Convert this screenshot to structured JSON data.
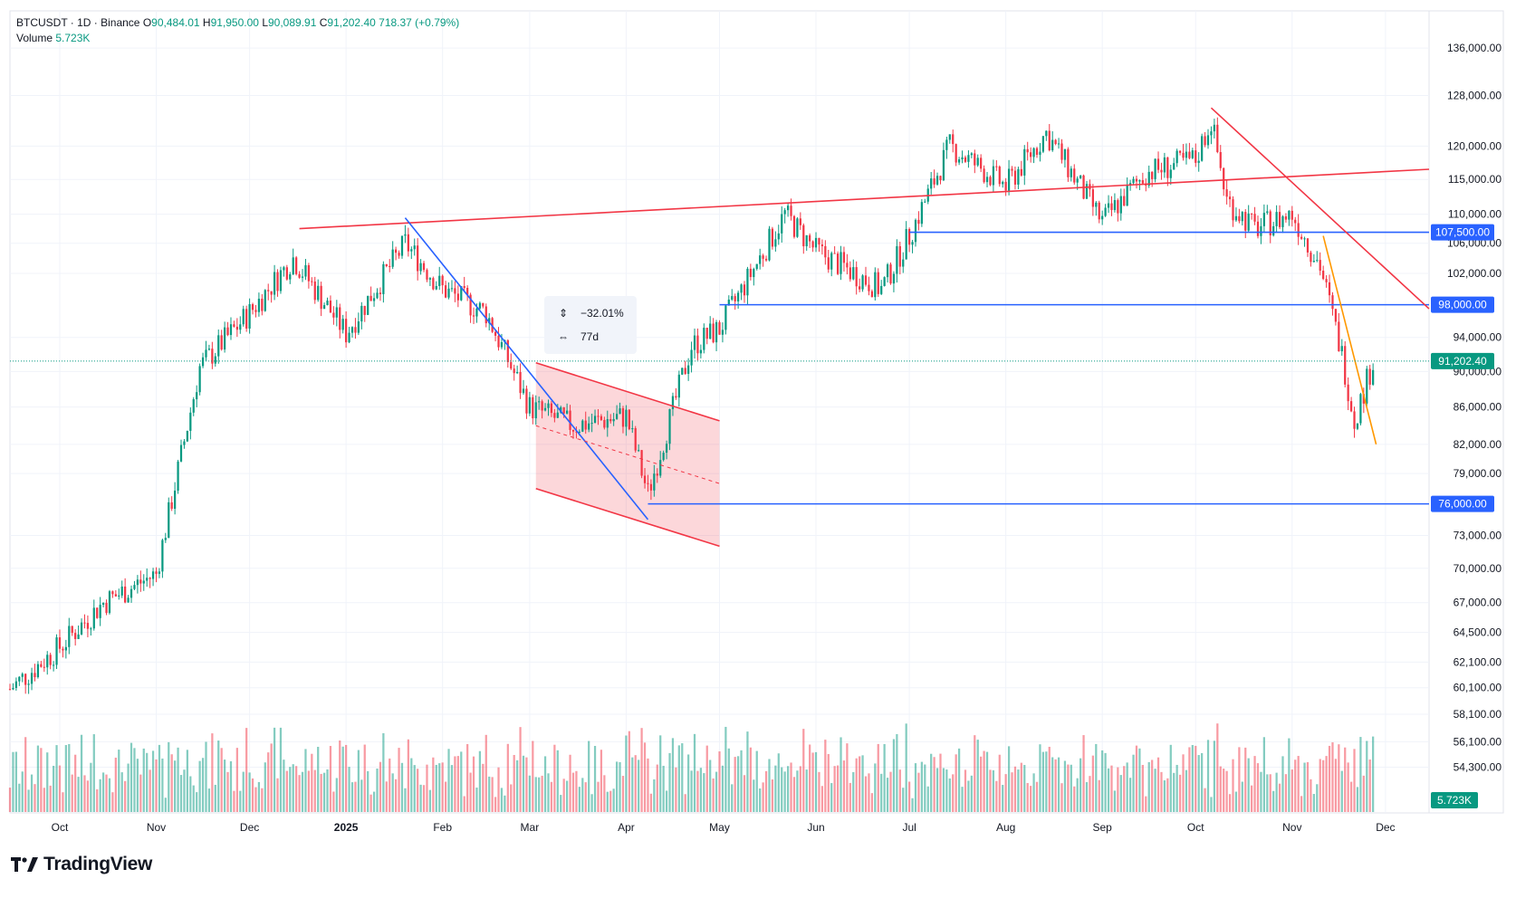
{
  "legend": {
    "symbol": "BTCUSDT · 1D · Binance",
    "open_label": "O",
    "open": "90,484.01",
    "high_label": "H",
    "high": "91,950.00",
    "low_label": "L",
    "low": "90,089.91",
    "close_label": "C",
    "close": "91,202.40",
    "change": "718.37 (+0.79%)",
    "volume_label": "Volume",
    "volume": "5.723K"
  },
  "tooltip": {
    "change_pct": "−32.01%",
    "duration": "77d",
    "change_icon": "price-range-icon",
    "duration_icon": "date-range-icon"
  },
  "branding": {
    "logo_text": "TradingView",
    "logo_icon": "tradingview-logo-icon"
  },
  "colors": {
    "up": "#089981",
    "down": "#F23645",
    "blue": "#2962FF",
    "orange": "#FF9800",
    "grid": "#F0F3FA",
    "axis_text": "#131722"
  },
  "chart_data": {
    "type": "candlestick",
    "title": "",
    "x_axis_ticks": [
      "Oct",
      "Nov",
      "Dec",
      "2025",
      "Feb",
      "Mar",
      "Apr",
      "May",
      "Jun",
      "Jul",
      "Aug",
      "Sep",
      "Oct",
      "Nov",
      "Dec"
    ],
    "y_axis_ticks": [
      "136,000.00",
      "128,000.00",
      "120,000.00",
      "115,000.00",
      "110,000.00",
      "106,000.00",
      "102,000.00",
      "94,000.00",
      "90,000.00",
      "86,000.00",
      "82,000.00",
      "79,000.00",
      "73,000.00",
      "70,000.00",
      "67,000.00",
      "64,500.00",
      "62,100.00",
      "60,100.00",
      "58,100.00",
      "56,100.00",
      "54,300.00"
    ],
    "y_scale": "log",
    "y_range": [
      52000,
      140000
    ],
    "x_range": [
      "2024-09-15",
      "2025-12-15"
    ],
    "last_price": 91202.4,
    "price_labels": [
      "107,500.00",
      "98,000.00",
      "91,202.40",
      "76,000.00"
    ],
    "volume_label": "5.723K",
    "horizontal_levels": [
      107500,
      98000,
      76000
    ],
    "close_series_monthly": [
      {
        "date": "2024-09-15",
        "close": 60000
      },
      {
        "date": "2024-10-01",
        "close": 63300
      },
      {
        "date": "2024-10-15",
        "close": 67000
      },
      {
        "date": "2024-11-01",
        "close": 69500
      },
      {
        "date": "2024-11-15",
        "close": 90500
      },
      {
        "date": "2024-12-01",
        "close": 97000
      },
      {
        "date": "2024-12-15",
        "close": 104000
      },
      {
        "date": "2025-01-01",
        "close": 94500
      },
      {
        "date": "2025-01-20",
        "close": 106000
      },
      {
        "date": "2025-02-01",
        "close": 100000
      },
      {
        "date": "2025-02-15",
        "close": 97000
      },
      {
        "date": "2025-03-01",
        "close": 86000
      },
      {
        "date": "2025-03-15",
        "close": 84000
      },
      {
        "date": "2025-04-01",
        "close": 85000
      },
      {
        "date": "2025-04-08",
        "close": 77000
      },
      {
        "date": "2025-04-22",
        "close": 93000
      },
      {
        "date": "2025-05-01",
        "close": 95000
      },
      {
        "date": "2025-05-22",
        "close": 110000
      },
      {
        "date": "2025-06-01",
        "close": 105000
      },
      {
        "date": "2025-06-22",
        "close": 100000
      },
      {
        "date": "2025-07-01",
        "close": 107000
      },
      {
        "date": "2025-07-14",
        "close": 120000
      },
      {
        "date": "2025-08-01",
        "close": 114000
      },
      {
        "date": "2025-08-14",
        "close": 122000
      },
      {
        "date": "2025-09-01",
        "close": 109000
      },
      {
        "date": "2025-09-15",
        "close": 116000
      },
      {
        "date": "2025-10-01",
        "close": 118000
      },
      {
        "date": "2025-10-06",
        "close": 124000
      },
      {
        "date": "2025-10-11",
        "close": 112000
      },
      {
        "date": "2025-10-20",
        "close": 108000
      },
      {
        "date": "2025-11-01",
        "close": 110000
      },
      {
        "date": "2025-11-10",
        "close": 103000
      },
      {
        "date": "2025-11-17",
        "close": 92000
      },
      {
        "date": "2025-11-21",
        "close": 84500
      },
      {
        "date": "2025-11-27",
        "close": 91202.4
      }
    ],
    "trendlines": [
      {
        "color": "red",
        "from": {
          "date": "2024-12-17",
          "price": 108000
        },
        "to": {
          "date": "2025-12-15",
          "price": 116500
        }
      },
      {
        "color": "blue",
        "from": {
          "date": "2025-01-20",
          "price": 109500
        },
        "to": {
          "date": "2025-04-08",
          "price": 74500
        }
      },
      {
        "color": "red",
        "from": {
          "date": "2025-10-06",
          "price": 126000
        },
        "to": {
          "date": "2025-12-15",
          "price": 97500
        }
      },
      {
        "color": "orange",
        "from": {
          "date": "2025-11-11",
          "price": 107000
        },
        "to": {
          "date": "2025-11-28",
          "price": 82000
        }
      }
    ],
    "channel": {
      "upper": {
        "from": {
          "date": "2025-03-03",
          "price": 91000
        },
        "to": {
          "date": "2025-05-01",
          "price": 84500
        }
      },
      "lower": {
        "from": {
          "date": "2025-03-03",
          "price": 77500
        },
        "to": {
          "date": "2025-05-01",
          "price": 72000
        }
      }
    }
  }
}
